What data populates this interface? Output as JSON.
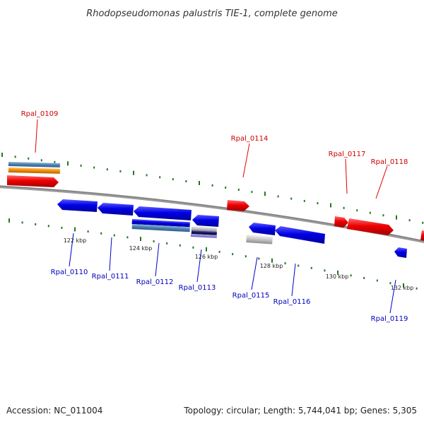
{
  "title": "Rhodopseudomonas palustris TIE-1, complete genome",
  "footer": {
    "accession": "Accession: NC_011004",
    "summary": "Topology: circular; Length: 5,744,041 bp; Genes: 5,305"
  },
  "colors": {
    "forward_gene": "#ee0000",
    "reverse_gene": "#0000dd",
    "forward_label": "#cc0000",
    "reverse_label": "#0000bb",
    "backbone": "#888888",
    "tick": "#227722"
  },
  "ticks": [
    "122 kbp",
    "124 kbp",
    "126 kbp",
    "128 kbp",
    "130 kbp",
    "132 kbp"
  ],
  "forward_genes": [
    "Rpal_0109",
    "Rpal_0114",
    "Rpal_0117",
    "Rpal_0118"
  ],
  "reverse_genes": [
    "Rpal_0110",
    "Rpal_0111",
    "Rpal_0112",
    "Rpal_0113",
    "Rpal_0115",
    "Rpal_0116",
    "Rpal_0119"
  ]
}
